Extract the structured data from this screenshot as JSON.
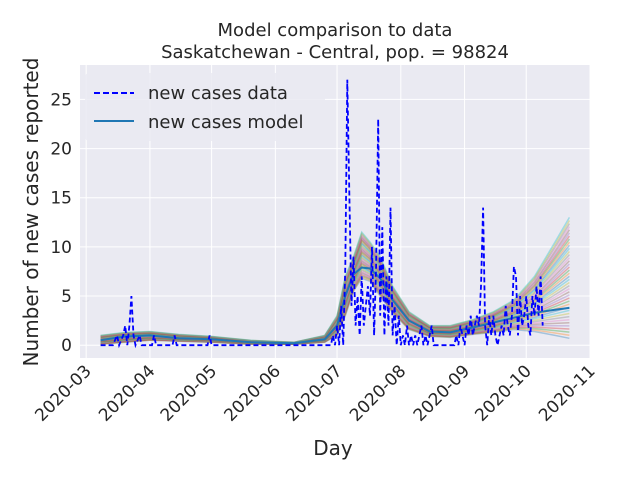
{
  "chart_data": {
    "type": "line",
    "title": "Model comparison to data",
    "subtitle": "Saskatchewan - Central, pop. = 98824",
    "xlabel": "Day",
    "ylabel": "Number of new cases reported",
    "xlim": [
      "2020-02-27",
      "2020-11-01"
    ],
    "ylim": [
      -1.3,
      28.5
    ],
    "x_ticks": [
      "2020-03",
      "2020-04",
      "2020-05",
      "2020-06",
      "2020-07",
      "2020-08",
      "2020-09",
      "2020-10",
      "2020-11"
    ],
    "y_ticks": [
      0,
      5,
      10,
      15,
      20,
      25
    ],
    "grid": true,
    "legend": {
      "placement": "upper-left",
      "entries": [
        {
          "label": "new cases data",
          "style": "dashed",
          "color": "#0000ff"
        },
        {
          "label": "new cases model",
          "style": "solid",
          "color": "#1f77b4"
        }
      ]
    },
    "series": [
      {
        "name": "new cases data",
        "color": "#0000ff",
        "style": "dashed",
        "points": [
          [
            "2020-03-08",
            0
          ],
          [
            "2020-03-14",
            0
          ],
          [
            "2020-03-16",
            1
          ],
          [
            "2020-03-17",
            0
          ],
          [
            "2020-03-19",
            1
          ],
          [
            "2020-03-20",
            2
          ],
          [
            "2020-03-21",
            0
          ],
          [
            "2020-03-22",
            2
          ],
          [
            "2020-03-23",
            5
          ],
          [
            "2020-03-24",
            1
          ],
          [
            "2020-03-25",
            0
          ],
          [
            "2020-03-27",
            1
          ],
          [
            "2020-03-28",
            0
          ],
          [
            "2020-04-02",
            0
          ],
          [
            "2020-04-03",
            1
          ],
          [
            "2020-04-04",
            0
          ],
          [
            "2020-04-12",
            0
          ],
          [
            "2020-04-13",
            1
          ],
          [
            "2020-04-14",
            0
          ],
          [
            "2020-04-29",
            0
          ],
          [
            "2020-04-30",
            1
          ],
          [
            "2020-05-01",
            0
          ],
          [
            "2020-06-28",
            0
          ],
          [
            "2020-06-29",
            1
          ],
          [
            "2020-06-30",
            0
          ],
          [
            "2020-07-01",
            2
          ],
          [
            "2020-07-02",
            0
          ],
          [
            "2020-07-03",
            4
          ],
          [
            "2020-07-04",
            0
          ],
          [
            "2020-07-05",
            8
          ],
          [
            "2020-07-06",
            27
          ],
          [
            "2020-07-07",
            15
          ],
          [
            "2020-07-08",
            4
          ],
          [
            "2020-07-09",
            9
          ],
          [
            "2020-07-10",
            2
          ],
          [
            "2020-07-11",
            5
          ],
          [
            "2020-07-12",
            1
          ],
          [
            "2020-07-13",
            7
          ],
          [
            "2020-07-14",
            2
          ],
          [
            "2020-07-15",
            4
          ],
          [
            "2020-07-16",
            6
          ],
          [
            "2020-07-17",
            3
          ],
          [
            "2020-07-18",
            10
          ],
          [
            "2020-07-19",
            1
          ],
          [
            "2020-07-20",
            8
          ],
          [
            "2020-07-21",
            23
          ],
          [
            "2020-07-22",
            3
          ],
          [
            "2020-07-23",
            12
          ],
          [
            "2020-07-24",
            1
          ],
          [
            "2020-07-25",
            7
          ],
          [
            "2020-07-26",
            2
          ],
          [
            "2020-07-27",
            14
          ],
          [
            "2020-07-28",
            1
          ],
          [
            "2020-07-29",
            4
          ],
          [
            "2020-07-30",
            0
          ],
          [
            "2020-07-31",
            3
          ],
          [
            "2020-08-01",
            0
          ],
          [
            "2020-08-02",
            1
          ],
          [
            "2020-08-03",
            0
          ],
          [
            "2020-08-04",
            2
          ],
          [
            "2020-08-05",
            0
          ],
          [
            "2020-08-06",
            1
          ],
          [
            "2020-08-07",
            0
          ],
          [
            "2020-08-08",
            1
          ],
          [
            "2020-08-09",
            0
          ],
          [
            "2020-08-11",
            2
          ],
          [
            "2020-08-12",
            0
          ],
          [
            "2020-08-13",
            1
          ],
          [
            "2020-08-14",
            0
          ],
          [
            "2020-08-16",
            2
          ],
          [
            "2020-08-17",
            0
          ],
          [
            "2020-08-27",
            0
          ],
          [
            "2020-08-28",
            1
          ],
          [
            "2020-08-29",
            0
          ],
          [
            "2020-08-30",
            2
          ],
          [
            "2020-08-31",
            1
          ],
          [
            "2020-09-01",
            0
          ],
          [
            "2020-09-02",
            2
          ],
          [
            "2020-09-03",
            1
          ],
          [
            "2020-09-04",
            3
          ],
          [
            "2020-09-05",
            1
          ],
          [
            "2020-09-06",
            2
          ],
          [
            "2020-09-07",
            3
          ],
          [
            "2020-09-08",
            2
          ],
          [
            "2020-09-09",
            6
          ],
          [
            "2020-09-10",
            14
          ],
          [
            "2020-09-11",
            2
          ],
          [
            "2020-09-12",
            0
          ],
          [
            "2020-09-13",
            3
          ],
          [
            "2020-09-14",
            1
          ],
          [
            "2020-09-15",
            3
          ],
          [
            "2020-09-16",
            1
          ],
          [
            "2020-09-17",
            0
          ],
          [
            "2020-09-19",
            2
          ],
          [
            "2020-09-20",
            1
          ],
          [
            "2020-09-21",
            4
          ],
          [
            "2020-09-22",
            2
          ],
          [
            "2020-09-23",
            1
          ],
          [
            "2020-09-24",
            3
          ],
          [
            "2020-09-25",
            8
          ],
          [
            "2020-09-26",
            7
          ],
          [
            "2020-09-27",
            1
          ],
          [
            "2020-09-28",
            5
          ],
          [
            "2020-09-29",
            2
          ],
          [
            "2020-09-30",
            3
          ],
          [
            "2020-10-01",
            5
          ],
          [
            "2020-10-02",
            2
          ],
          [
            "2020-10-03",
            1
          ],
          [
            "2020-10-04",
            5
          ],
          [
            "2020-10-05",
            3
          ],
          [
            "2020-10-06",
            6
          ],
          [
            "2020-10-07",
            3
          ],
          [
            "2020-10-08",
            7
          ],
          [
            "2020-10-09",
            2
          ]
        ]
      },
      {
        "name": "new cases model",
        "color": "#1f77b4",
        "style": "solid",
        "points": [
          [
            "2020-03-08",
            0.5
          ],
          [
            "2020-03-20",
            0.9
          ],
          [
            "2020-04-01",
            1.0
          ],
          [
            "2020-04-15",
            0.7
          ],
          [
            "2020-05-01",
            0.6
          ],
          [
            "2020-05-20",
            0.3
          ],
          [
            "2020-06-10",
            0.2
          ],
          [
            "2020-06-25",
            0.6
          ],
          [
            "2020-07-01",
            2.0
          ],
          [
            "2020-07-05",
            5.0
          ],
          [
            "2020-07-09",
            7.2
          ],
          [
            "2020-07-13",
            7.9
          ],
          [
            "2020-07-17",
            7.8
          ],
          [
            "2020-07-22",
            6.8
          ],
          [
            "2020-07-28",
            4.6
          ],
          [
            "2020-08-05",
            2.5
          ],
          [
            "2020-08-15",
            1.4
          ],
          [
            "2020-08-25",
            1.3
          ],
          [
            "2020-09-05",
            1.8
          ],
          [
            "2020-09-15",
            2.3
          ],
          [
            "2020-09-25",
            2.8
          ],
          [
            "2020-10-05",
            3.3
          ],
          [
            "2020-10-15",
            3.6
          ],
          [
            "2020-10-22",
            3.8
          ]
        ]
      }
    ],
    "ensemble_band": {
      "points": [
        [
          "2020-03-08",
          0.1,
          1.0
        ],
        [
          "2020-03-20",
          0.3,
          1.3
        ],
        [
          "2020-04-01",
          0.5,
          1.4
        ],
        [
          "2020-04-15",
          0.4,
          1.1
        ],
        [
          "2020-05-01",
          0.3,
          0.9
        ],
        [
          "2020-05-20",
          0.1,
          0.5
        ],
        [
          "2020-06-10",
          0.1,
          0.3
        ],
        [
          "2020-06-25",
          0.3,
          1.0
        ],
        [
          "2020-07-01",
          1.0,
          3.0
        ],
        [
          "2020-07-05",
          3.0,
          7.0
        ],
        [
          "2020-07-09",
          5.5,
          9.0
        ],
        [
          "2020-07-13",
          6.8,
          11.5
        ],
        [
          "2020-07-17",
          6.5,
          10.5
        ],
        [
          "2020-07-22",
          5.0,
          9.0
        ],
        [
          "2020-07-28",
          3.3,
          6.0
        ],
        [
          "2020-08-05",
          1.6,
          3.4
        ],
        [
          "2020-08-15",
          0.9,
          2.0
        ],
        [
          "2020-08-25",
          0.8,
          2.0
        ],
        [
          "2020-09-05",
          1.1,
          2.6
        ],
        [
          "2020-09-15",
          1.3,
          3.4
        ],
        [
          "2020-09-25",
          1.6,
          4.6
        ],
        [
          "2020-10-05",
          1.4,
          7.0
        ],
        [
          "2020-10-15",
          1.0,
          10.5
        ],
        [
          "2020-10-22",
          0.7,
          13.0
        ]
      ]
    }
  }
}
